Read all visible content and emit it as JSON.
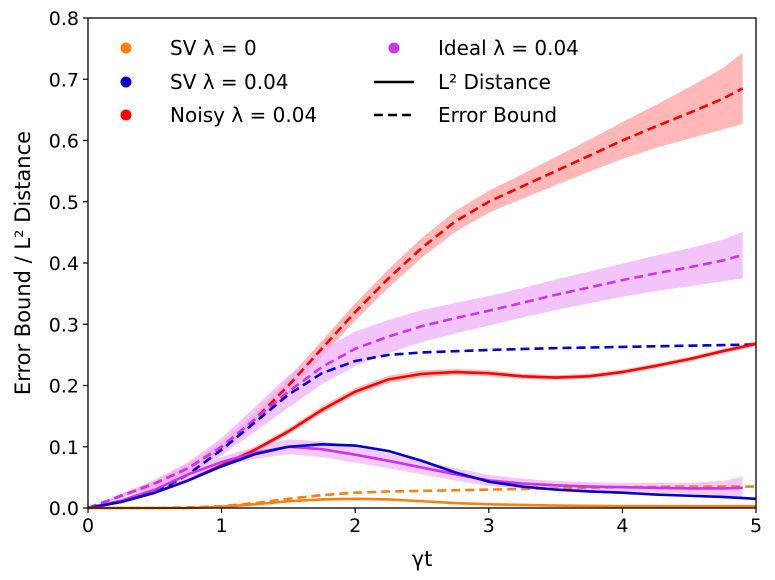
{
  "chart_data": {
    "type": "line",
    "title": "",
    "xlabel": "γt",
    "ylabel": "Error Bound / L² Distance",
    "xlim": [
      0,
      5
    ],
    "ylim": [
      0,
      0.8
    ],
    "xticks": [
      0,
      1,
      2,
      3,
      4,
      5
    ],
    "xtick_labels": [
      "0",
      "1",
      "2",
      "3",
      "4",
      "5"
    ],
    "yticks": [
      0.0,
      0.1,
      0.2,
      0.3,
      0.4,
      0.5,
      0.6,
      0.7,
      0.8
    ],
    "ytick_labels": [
      "0.0",
      "0.1",
      "0.2",
      "0.3",
      "0.4",
      "0.5",
      "0.6",
      "0.7",
      "0.8"
    ],
    "grid": false,
    "legend_position": "top-left",
    "legend": [
      {
        "label": "SV λ = 0",
        "marker": "dot",
        "color": "#ff7f0e"
      },
      {
        "label": "SV λ = 0.04",
        "marker": "dot",
        "color": "#0000cc"
      },
      {
        "label": "Noisy λ = 0.04",
        "marker": "dot",
        "color": "#ff0000"
      },
      {
        "label": "Ideal λ = 0.04",
        "marker": "dot",
        "color": "#cc33ee"
      },
      {
        "label": "L² Distance",
        "marker": "solid-line",
        "color": "#000000"
      },
      {
        "label": "Error Bound",
        "marker": "dashed-line",
        "color": "#000000"
      }
    ],
    "series": [
      {
        "name": "Noisy λ = 0.04 Error Bound",
        "color": "#ff0000",
        "style": "dashed",
        "band_color": "#ff9f9f",
        "x": [
          0,
          0.25,
          0.5,
          0.75,
          1.0,
          1.25,
          1.5,
          1.75,
          2.0,
          2.25,
          2.5,
          2.75,
          3.0,
          3.25,
          3.5,
          3.75,
          4.0,
          4.25,
          4.5,
          4.75,
          4.9
        ],
        "y": [
          0,
          0.02,
          0.04,
          0.065,
          0.1,
          0.145,
          0.2,
          0.26,
          0.32,
          0.375,
          0.425,
          0.468,
          0.5,
          0.525,
          0.55,
          0.575,
          0.6,
          0.623,
          0.645,
          0.668,
          0.685
        ],
        "band_halfwidth": [
          0,
          0.003,
          0.005,
          0.007,
          0.008,
          0.01,
          0.012,
          0.013,
          0.014,
          0.015,
          0.016,
          0.017,
          0.018,
          0.02,
          0.023,
          0.026,
          0.03,
          0.035,
          0.042,
          0.05,
          0.058
        ]
      },
      {
        "name": "Ideal λ = 0.04 Error Bound",
        "color": "#cc33ee",
        "style": "dashed",
        "band_color": "#eeb0f8",
        "x": [
          0,
          0.25,
          0.5,
          0.75,
          1.0,
          1.25,
          1.5,
          1.75,
          2.0,
          2.25,
          2.5,
          2.75,
          3.0,
          3.25,
          3.5,
          3.75,
          4.0,
          4.25,
          4.5,
          4.75,
          4.9
        ],
        "y": [
          0,
          0.02,
          0.04,
          0.065,
          0.1,
          0.145,
          0.19,
          0.23,
          0.26,
          0.28,
          0.297,
          0.31,
          0.322,
          0.335,
          0.348,
          0.36,
          0.372,
          0.383,
          0.393,
          0.404,
          0.413
        ],
        "band_halfwidth": [
          0,
          0.003,
          0.006,
          0.01,
          0.014,
          0.02,
          0.026,
          0.028,
          0.028,
          0.027,
          0.026,
          0.025,
          0.024,
          0.024,
          0.025,
          0.026,
          0.027,
          0.029,
          0.031,
          0.034,
          0.038
        ]
      },
      {
        "name": "SV λ = 0.04 Error Bound",
        "color": "#0000cc",
        "style": "dashed",
        "x": [
          0,
          0.25,
          0.5,
          0.75,
          1.0,
          1.25,
          1.5,
          1.75,
          2.0,
          2.25,
          2.5,
          2.75,
          3.0,
          3.5,
          4.0,
          4.5,
          5.0
        ],
        "y": [
          0,
          0.01,
          0.025,
          0.055,
          0.095,
          0.14,
          0.185,
          0.22,
          0.24,
          0.25,
          0.254,
          0.256,
          0.258,
          0.261,
          0.263,
          0.265,
          0.267
        ]
      },
      {
        "name": "SV λ = 0 Error Bound",
        "color": "#ff7f0e",
        "style": "dashed",
        "x": [
          0,
          0.5,
          0.75,
          1.0,
          1.25,
          1.5,
          1.75,
          2.0,
          2.25,
          2.5,
          3.0,
          3.5,
          4.0,
          4.5,
          5.0
        ],
        "y": [
          0,
          0,
          0.001,
          0.003,
          0.008,
          0.015,
          0.021,
          0.025,
          0.027,
          0.028,
          0.03,
          0.032,
          0.034,
          0.035,
          0.035
        ]
      },
      {
        "name": "Noisy λ = 0.04 L² Distance",
        "color": "#ff0000",
        "style": "solid",
        "band_color": "#ff9f9f",
        "x": [
          0,
          0.25,
          0.5,
          0.75,
          1.0,
          1.25,
          1.5,
          1.75,
          2.0,
          2.25,
          2.5,
          2.75,
          3.0,
          3.25,
          3.5,
          3.75,
          4.0,
          4.25,
          4.5,
          4.75,
          5.0
        ],
        "y": [
          0,
          0.01,
          0.025,
          0.045,
          0.07,
          0.095,
          0.125,
          0.16,
          0.19,
          0.21,
          0.219,
          0.222,
          0.22,
          0.215,
          0.213,
          0.215,
          0.222,
          0.232,
          0.243,
          0.256,
          0.268
        ],
        "band_halfwidth": [
          0,
          0.001,
          0.002,
          0.003,
          0.004,
          0.005,
          0.005,
          0.006,
          0.006,
          0.006,
          0.006,
          0.005,
          0.005,
          0.004,
          0.004,
          0.004,
          0.004,
          0.004,
          0.004,
          0.004,
          0.004
        ]
      },
      {
        "name": "Ideal λ = 0.04 L² Distance",
        "color": "#cc33ee",
        "style": "solid",
        "band_color": "#eeb0f8",
        "x": [
          0,
          0.25,
          0.5,
          0.75,
          1.0,
          1.25,
          1.5,
          1.75,
          2.0,
          2.25,
          2.5,
          2.75,
          3.0,
          3.25,
          3.5,
          3.75,
          4.0,
          4.25,
          4.5,
          4.75,
          4.9
        ],
        "y": [
          0,
          0.012,
          0.03,
          0.055,
          0.075,
          0.09,
          0.1,
          0.096,
          0.087,
          0.077,
          0.066,
          0.055,
          0.045,
          0.04,
          0.037,
          0.035,
          0.034,
          0.033,
          0.032,
          0.032,
          0.033
        ],
        "band_halfwidth": [
          0,
          0.003,
          0.005,
          0.007,
          0.008,
          0.01,
          0.012,
          0.013,
          0.013,
          0.012,
          0.011,
          0.01,
          0.009,
          0.008,
          0.007,
          0.007,
          0.007,
          0.008,
          0.009,
          0.012,
          0.018
        ]
      },
      {
        "name": "SV λ = 0.04 L² Distance",
        "color": "#0000cc",
        "style": "solid",
        "x": [
          0,
          0.25,
          0.5,
          0.75,
          1.0,
          1.25,
          1.5,
          1.75,
          2.0,
          2.25,
          2.5,
          2.75,
          3.0,
          3.25,
          3.5,
          3.75,
          4.0,
          4.25,
          4.5,
          4.75,
          5.0
        ],
        "y": [
          0,
          0.01,
          0.025,
          0.045,
          0.068,
          0.088,
          0.1,
          0.104,
          0.102,
          0.093,
          0.077,
          0.058,
          0.043,
          0.035,
          0.03,
          0.027,
          0.025,
          0.022,
          0.02,
          0.018,
          0.015
        ]
      },
      {
        "name": "SV λ = 0 L² Distance",
        "color": "#ff7f0e",
        "style": "solid",
        "x": [
          0,
          0.75,
          1.0,
          1.25,
          1.5,
          1.75,
          2.0,
          2.25,
          2.5,
          2.75,
          3.0,
          3.5,
          4.0,
          4.5,
          5.0
        ],
        "y": [
          0,
          0,
          0.002,
          0.006,
          0.011,
          0.014,
          0.015,
          0.014,
          0.011,
          0.008,
          0.006,
          0.004,
          0.003,
          0.003,
          0.003
        ]
      }
    ]
  }
}
